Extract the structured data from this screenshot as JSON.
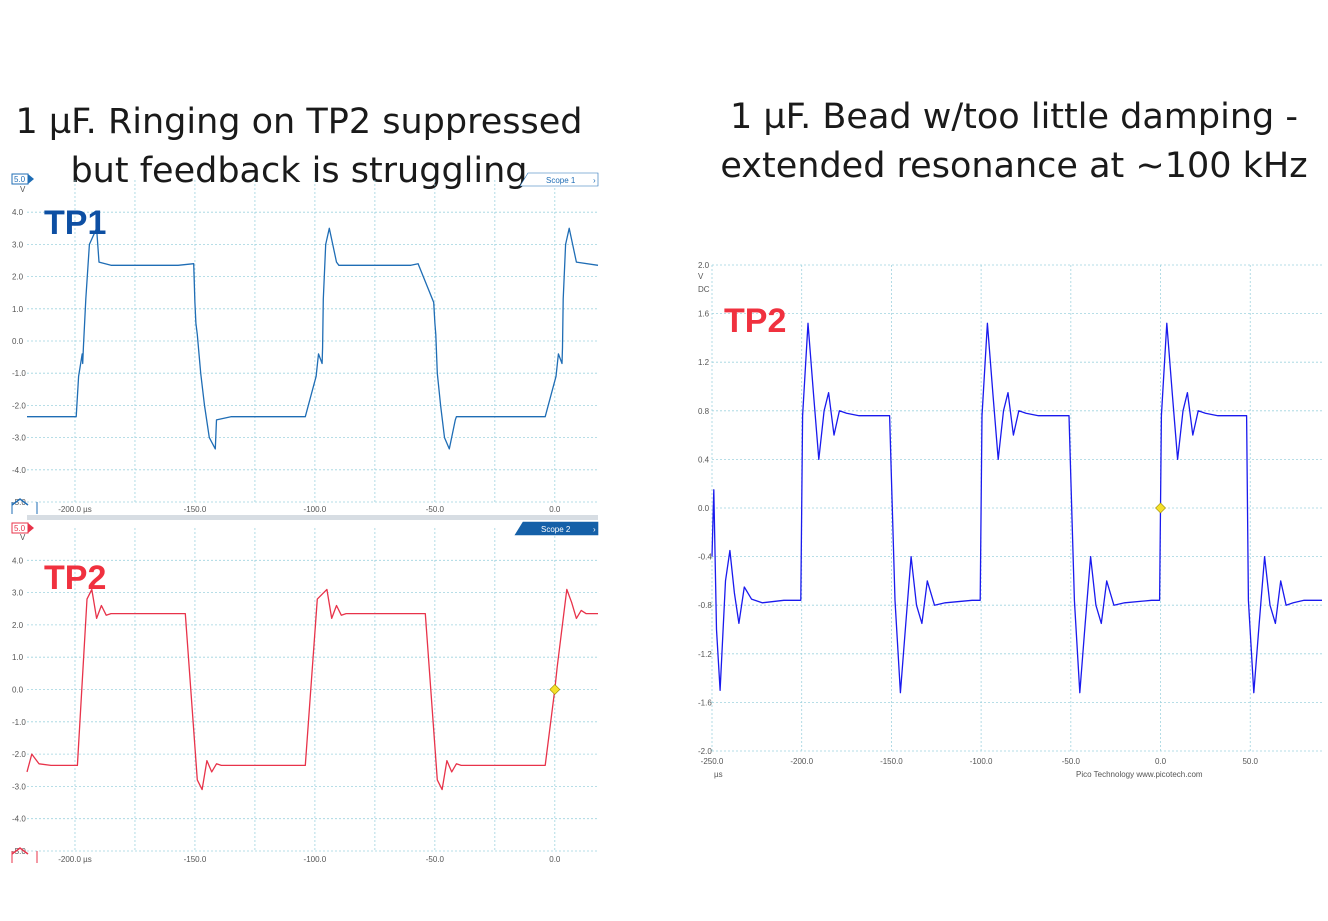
{
  "captions": {
    "left_line1": "1 µF.  Ringing on TP2 suppressed",
    "left_line2": "but feedback is struggling",
    "right_line1": "1 µF.  Bead w/too little damping -",
    "right_line2": "extended resonance at ~100 kHz"
  },
  "footer": {
    "brand": "Pico Technology",
    "url": "www.picotech.com"
  },
  "colors": {
    "tp1": "#1f6db5",
    "tp2_left": "#e8334a",
    "tp2_right": "#1a1aee",
    "tp1_label": "#0d4fa3",
    "tp2_label": "#f0313f",
    "grid": "#9fd3df",
    "marker": "#f5e02a"
  },
  "chart_data": [
    {
      "type": "line",
      "panel": "Scope 1",
      "channel_label": "TP1",
      "range_badge": "5.0",
      "yunit": "V",
      "ylim": [
        -5.0,
        5.0
      ],
      "xlim": [
        -220,
        18
      ],
      "ytick_labels": [
        "4.0",
        "3.0",
        "2.0",
        "1.0",
        "0.0",
        "-1.0",
        "-2.0",
        "-3.0",
        "-4.0",
        "-5.0"
      ],
      "ytick_values": [
        4,
        3,
        2,
        1,
        0,
        -1,
        -2,
        -3,
        -4,
        -5
      ],
      "xtick_labels": [
        "-200.0 µs",
        "-150.0",
        "-100.0",
        "-50.0",
        "0.0"
      ],
      "xtick_values": [
        -200,
        -150,
        -100,
        -50,
        0
      ],
      "grid": true,
      "series": [
        {
          "color": "#1f6db5",
          "x": [
            -220,
            -199.5,
            -198.5,
            -197,
            -196.8,
            -196.5,
            -195.5,
            -194,
            -191,
            -190,
            -185,
            -160,
            -157,
            -150.5,
            -150,
            -149.6,
            -149,
            -147.6,
            -146,
            -144,
            -141.5,
            -141,
            -135,
            -107,
            -104,
            -99.5,
            -98.5,
            -97,
            -96.8,
            -96.5,
            -95.5,
            -94,
            -91,
            -90,
            -85,
            -60,
            -57,
            -50.5,
            -50,
            -49.6,
            -49,
            -47.6,
            -46,
            -44,
            -41.5,
            -41,
            -35,
            -7,
            -4,
            0.5,
            1.5,
            3,
            3.2,
            3.5,
            4.5,
            6,
            9,
            18
          ],
          "y": [
            -2.35,
            -2.35,
            -1.1,
            -0.4,
            -0.7,
            -0.2,
            1.3,
            3.0,
            3.5,
            2.45,
            2.35,
            2.35,
            2.35,
            2.4,
            1.2,
            0.55,
            0.2,
            -1.0,
            -2.0,
            -3.0,
            -3.35,
            -2.45,
            -2.35,
            -2.35,
            -2.35,
            -1.1,
            -0.4,
            -0.7,
            -0.2,
            1.3,
            3.0,
            3.5,
            2.45,
            2.35,
            2.35,
            2.35,
            2.4,
            1.2,
            0.55,
            0.2,
            -1.0,
            -2.0,
            -3.0,
            -3.35,
            -2.45,
            -2.35,
            -2.35,
            -2.35,
            -2.35,
            -1.1,
            -0.4,
            -0.7,
            -0.2,
            1.3,
            3.0,
            3.5,
            2.45,
            2.35
          ]
        }
      ]
    },
    {
      "type": "line",
      "panel": "Scope 2",
      "channel_label": "TP2",
      "range_badge": "5.0",
      "yunit": "V",
      "ylim": [
        -5.0,
        5.0
      ],
      "xlim": [
        -220,
        18
      ],
      "ytick_labels": [
        "4.0",
        "3.0",
        "2.0",
        "1.0",
        "0.0",
        "-1.0",
        "-2.0",
        "-3.0",
        "-4.0",
        "-5.0"
      ],
      "ytick_values": [
        4,
        3,
        2,
        1,
        0,
        -1,
        -2,
        -3,
        -4,
        -5
      ],
      "xtick_labels": [
        "-200.0 µs",
        "-150.0",
        "-100.0",
        "-50.0",
        "0.0"
      ],
      "xtick_values": [
        -200,
        -150,
        -100,
        -50,
        0
      ],
      "grid": true,
      "series": [
        {
          "color": "#e8334a",
          "x": [
            -220,
            -218,
            -215,
            -210,
            -202,
            -199,
            -195,
            -193,
            -191,
            -189,
            -187,
            -185,
            -160,
            -157,
            -154,
            -149,
            -147,
            -145,
            -143,
            -141,
            -139,
            -137,
            -135,
            -107,
            -104,
            -99,
            -95,
            -93,
            -91,
            -89,
            -87,
            -85,
            -60,
            -57,
            -54,
            -49,
            -47,
            -45,
            -43,
            -41,
            -39,
            -37,
            -35,
            -7,
            -4,
            0,
            1,
            5,
            7,
            9,
            11,
            13,
            18
          ],
          "y": [
            -2.55,
            -2.0,
            -2.3,
            -2.35,
            -2.35,
            -2.35,
            2.8,
            3.1,
            2.2,
            2.6,
            2.3,
            2.35,
            2.35,
            2.35,
            2.35,
            -2.8,
            -3.1,
            -2.2,
            -2.55,
            -2.3,
            -2.35,
            -2.35,
            -2.35,
            -2.35,
            -2.35,
            2.8,
            3.1,
            2.2,
            2.6,
            2.3,
            2.35,
            2.35,
            2.35,
            2.35,
            2.35,
            -2.8,
            -3.1,
            -2.2,
            -2.55,
            -2.3,
            -2.35,
            -2.35,
            -2.35,
            -2.35,
            -2.35,
            0.0,
            0.7,
            3.1,
            2.7,
            2.2,
            2.45,
            2.35,
            2.35
          ]
        }
      ],
      "marker": {
        "x": 0,
        "y": 0
      }
    },
    {
      "type": "line",
      "panel": "single",
      "channel_label": "TP2",
      "yunit": "V",
      "coupling": "DC",
      "xunit": "µs",
      "ylim": [
        -2.0,
        2.0
      ],
      "xlim": [
        -250,
        90
      ],
      "ytick_labels": [
        "2.0",
        "1.6",
        "1.2",
        "0.8",
        "0.4",
        "0.0",
        "-0.4",
        "-0.8",
        "-1.2",
        "-1.6",
        "-2.0"
      ],
      "ytick_values": [
        2.0,
        1.6,
        1.2,
        0.8,
        0.4,
        0.0,
        -0.4,
        -0.8,
        -1.2,
        -1.6,
        -2.0
      ],
      "xtick_labels": [
        "-250.0",
        "-200.0",
        "-150.0",
        "-100.0",
        "0.0",
        "50.0"
      ],
      "xtick_values": [
        -250,
        -200,
        -150,
        -100,
        0,
        50
      ],
      "extra_xtick_labels": [
        "-50.0"
      ],
      "extra_xtick_values": [
        -50
      ],
      "grid": true,
      "series": [
        {
          "color": "#1a1aee",
          "x": [
            -250,
            -249,
            -247.5,
            -245.5,
            -242.5,
            -240,
            -237.5,
            -235,
            -232,
            -228,
            -222,
            -210,
            -200.5,
            -199.5,
            -196.5,
            -193.5,
            -190.5,
            -187.5,
            -185,
            -182,
            -179,
            -175,
            -168,
            -152,
            -151,
            -148,
            -145,
            -142,
            -139,
            -136,
            -133,
            -130,
            -126,
            -120,
            -105,
            -100.5,
            -99.5,
            -96.5,
            -93.5,
            -90.5,
            -87.5,
            -85,
            -82,
            -79,
            -75,
            -68,
            -52,
            -51,
            -48,
            -45,
            -42,
            -39,
            -36,
            -33,
            -30,
            -26,
            -20,
            -5,
            -0.5,
            0.5,
            3.5,
            6.5,
            9.5,
            12.5,
            15,
            18,
            21,
            25,
            32,
            48,
            49,
            52,
            55,
            58,
            61,
            64,
            67,
            70,
            74,
            80,
            90
          ],
          "y": [
            -0.4,
            0.15,
            -1.0,
            -1.5,
            -0.6,
            -0.35,
            -0.7,
            -0.95,
            -0.65,
            -0.75,
            -0.78,
            -0.76,
            -0.76,
            0.76,
            1.52,
            0.95,
            0.4,
            0.8,
            0.95,
            0.6,
            0.8,
            0.78,
            0.76,
            0.76,
            0.76,
            -0.76,
            -1.52,
            -0.95,
            -0.4,
            -0.8,
            -0.95,
            -0.6,
            -0.8,
            -0.78,
            -0.76,
            -0.76,
            0.76,
            1.52,
            0.95,
            0.4,
            0.8,
            0.95,
            0.6,
            0.8,
            0.78,
            0.76,
            0.76,
            0.76,
            -0.76,
            -1.52,
            -0.95,
            -0.4,
            -0.8,
            -0.95,
            -0.6,
            -0.8,
            -0.78,
            -0.76,
            -0.76,
            0.76,
            1.52,
            0.95,
            0.4,
            0.8,
            0.95,
            0.6,
            0.8,
            0.78,
            0.76,
            0.76,
            -0.76,
            -1.52,
            -0.95,
            -0.4,
            -0.8,
            -0.95,
            -0.6,
            -0.8,
            -0.78,
            -0.76,
            -0.76
          ]
        }
      ],
      "marker": {
        "x": 0,
        "y": 0
      }
    }
  ]
}
